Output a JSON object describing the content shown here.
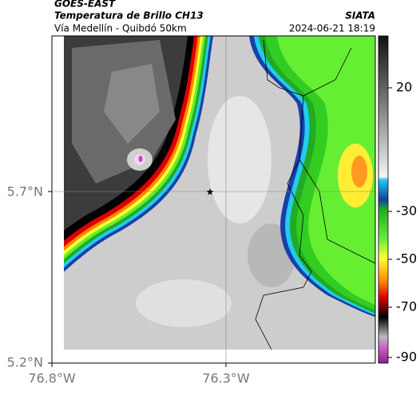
{
  "header": {
    "title": "GOES-EAST",
    "subtitle": "Temperatura de Brillo CH13",
    "location": "Vía Medellín - Quibdó 50km",
    "source": "SIATA",
    "timestamp": "2024-06-21 18:19"
  },
  "axes": {
    "y_ticks": [
      "5.7°N",
      "5.2°N"
    ],
    "x_ticks": [
      "76.8°W",
      "76.3°W"
    ]
  },
  "colorbar": {
    "ticks": [
      20,
      -30,
      -50,
      -70,
      -90
    ]
  }
}
